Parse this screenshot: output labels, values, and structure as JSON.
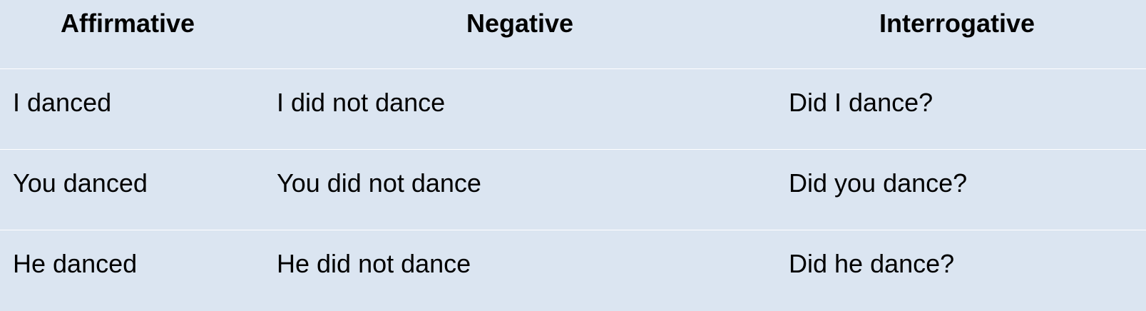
{
  "table": {
    "headers": [
      "Affirmative",
      "Negative",
      "Interrogative"
    ],
    "rows": [
      [
        "I danced",
        "I did not dance",
        "Did I dance?"
      ],
      [
        "You danced",
        "You did not dance",
        "Did you dance?"
      ],
      [
        "He danced",
        "He did not dance",
        "Did he dance?"
      ]
    ]
  },
  "colors": {
    "background": "#dbe5f1",
    "row_divider": "#ffffff",
    "text": "#000000"
  }
}
